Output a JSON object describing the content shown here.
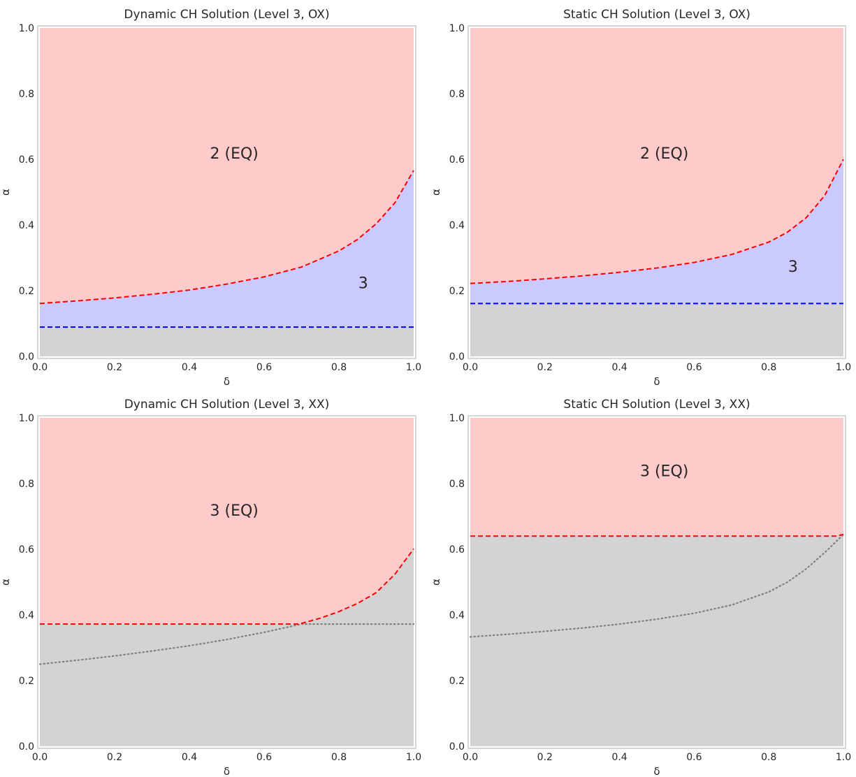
{
  "colors": {
    "red_region": "#ffcaca",
    "blue_region": "#cacaff",
    "gray_region": "#d3d3d3",
    "red_line": "#ff0000",
    "blue_line": "#0000ff",
    "dotted_line": "#808080",
    "frame": "#cccccc"
  },
  "chart_data": [
    {
      "type": "area",
      "title": "Dynamic CH Solution (Level 3, OX)",
      "xlabel": "δ",
      "ylabel": "α",
      "xlim": [
        0,
        1
      ],
      "ylim": [
        0,
        1
      ],
      "xticks": [
        "0.0",
        "0.2",
        "0.4",
        "0.6",
        "0.8",
        "1.0"
      ],
      "yticks": [
        "0.0",
        "0.2",
        "0.4",
        "0.6",
        "0.8",
        "1.0"
      ],
      "grid": false,
      "regions": [
        {
          "label": "2 (EQ)",
          "x": 0.52,
          "y": 0.615
        },
        {
          "label": "3",
          "x": 0.865,
          "y": 0.22
        }
      ],
      "upper_boundary": {
        "style": "red-dashed",
        "x": [
          0.0,
          0.1,
          0.2,
          0.3,
          0.4,
          0.5,
          0.6,
          0.7,
          0.8,
          0.85,
          0.9,
          0.95,
          1.0
        ],
        "y": [
          0.161,
          0.169,
          0.178,
          0.189,
          0.202,
          0.22,
          0.242,
          0.272,
          0.321,
          0.356,
          0.404,
          0.468,
          0.566
        ]
      },
      "lower_boundary": {
        "style": "blue-dashed",
        "y": 0.089
      }
    },
    {
      "type": "area",
      "title": "Static CH Solution (Level 3, OX)",
      "xlabel": "δ",
      "ylabel": "α",
      "xlim": [
        0,
        1
      ],
      "ylim": [
        0,
        1
      ],
      "xticks": [
        "0.0",
        "0.2",
        "0.4",
        "0.6",
        "0.8",
        "1.0"
      ],
      "yticks": [
        "0.0",
        "0.2",
        "0.4",
        "0.6",
        "0.8",
        "1.0"
      ],
      "grid": false,
      "regions": [
        {
          "label": "2 (EQ)",
          "x": 0.52,
          "y": 0.615
        },
        {
          "label": "3",
          "x": 0.865,
          "y": 0.27
        }
      ],
      "upper_boundary": {
        "style": "red-dashed",
        "x": [
          0.0,
          0.1,
          0.2,
          0.3,
          0.4,
          0.5,
          0.6,
          0.7,
          0.8,
          0.85,
          0.9,
          0.95,
          1.0
        ],
        "y": [
          0.222,
          0.228,
          0.236,
          0.245,
          0.256,
          0.269,
          0.286,
          0.31,
          0.348,
          0.378,
          0.422,
          0.49,
          0.6
        ]
      },
      "lower_boundary": {
        "style": "blue-dashed",
        "y": 0.161
      }
    },
    {
      "type": "area",
      "title": "Dynamic CH Solution (Level 3, XX)",
      "xlabel": "δ",
      "ylabel": "α",
      "xlim": [
        0,
        1
      ],
      "ylim": [
        0,
        1
      ],
      "xticks": [
        "0.0",
        "0.2",
        "0.4",
        "0.6",
        "0.8",
        "1.0"
      ],
      "yticks": [
        "0.0",
        "0.2",
        "0.4",
        "0.6",
        "0.8",
        "1.0"
      ],
      "grid": false,
      "regions": [
        {
          "label": "3 (EQ)",
          "x": 0.52,
          "y": 0.715
        }
      ],
      "upper_boundary": {
        "style": "red-dashed",
        "x": [
          0.0,
          0.1,
          0.2,
          0.3,
          0.4,
          0.5,
          0.6,
          0.69,
          0.7,
          0.75,
          0.8,
          0.85,
          0.9,
          0.95,
          1.0
        ],
        "y": [
          0.372,
          0.372,
          0.372,
          0.372,
          0.372,
          0.372,
          0.372,
          0.372,
          0.374,
          0.39,
          0.41,
          0.435,
          0.468,
          0.524,
          0.601
        ]
      },
      "dotted_curve": {
        "style": "gray-dotted",
        "x": [
          0.0,
          0.1,
          0.2,
          0.3,
          0.4,
          0.5,
          0.6,
          0.7,
          0.8,
          0.9,
          1.0
        ],
        "y": [
          0.25,
          0.262,
          0.275,
          0.29,
          0.306,
          0.325,
          0.347,
          0.372,
          0.372,
          0.372,
          0.372
        ]
      }
    },
    {
      "type": "area",
      "title": "Static CH Solution (Level 3, XX)",
      "xlabel": "δ",
      "ylabel": "α",
      "xlim": [
        0,
        1
      ],
      "ylim": [
        0,
        1
      ],
      "xticks": [
        "0.0",
        "0.2",
        "0.4",
        "0.6",
        "0.8",
        "1.0"
      ],
      "yticks": [
        "0.0",
        "0.2",
        "0.4",
        "0.6",
        "0.8",
        "1.0"
      ],
      "grid": false,
      "regions": [
        {
          "label": "3 (EQ)",
          "x": 0.52,
          "y": 0.835
        }
      ],
      "upper_boundary": {
        "style": "red-dashed",
        "x": [
          0.0,
          0.2,
          0.4,
          0.6,
          0.8,
          0.98,
          1.0
        ],
        "y": [
          0.64,
          0.64,
          0.64,
          0.64,
          0.64,
          0.64,
          0.645
        ]
      },
      "dotted_curve": {
        "style": "gray-dotted",
        "x": [
          0.0,
          0.1,
          0.2,
          0.3,
          0.4,
          0.5,
          0.6,
          0.7,
          0.8,
          0.85,
          0.9,
          0.95,
          1.0
        ],
        "y": [
          0.333,
          0.341,
          0.35,
          0.36,
          0.372,
          0.387,
          0.405,
          0.43,
          0.47,
          0.5,
          0.54,
          0.59,
          0.645
        ]
      }
    }
  ]
}
